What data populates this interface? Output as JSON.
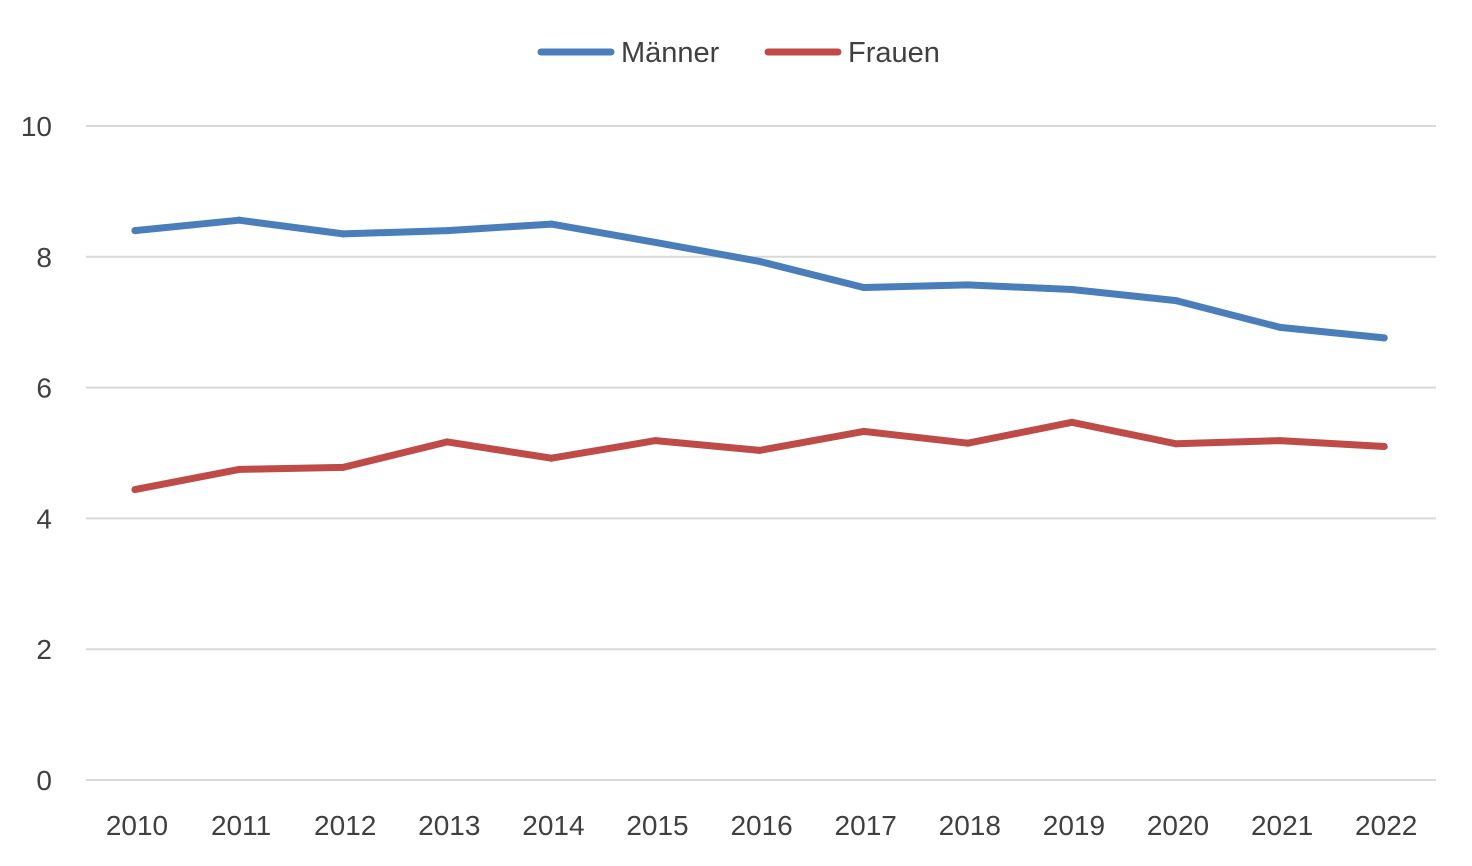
{
  "chart_data": {
    "type": "line",
    "title": "",
    "xlabel": "",
    "ylabel": "",
    "categories": [
      "2010",
      "2011",
      "2012",
      "2013",
      "2014",
      "2015",
      "2016",
      "2017",
      "2018",
      "2019",
      "2020",
      "2021",
      "2022"
    ],
    "series": [
      {
        "name": "Männer",
        "color": "#4a7ebb",
        "values": [
          8.4,
          8.56,
          8.35,
          8.4,
          8.5,
          8.22,
          7.93,
          7.53,
          7.57,
          7.5,
          7.33,
          6.92,
          6.76
        ]
      },
      {
        "name": "Frauen",
        "color": "#be4b48",
        "values": [
          4.44,
          4.75,
          4.78,
          5.17,
          4.92,
          5.19,
          5.04,
          5.33,
          5.15,
          5.47,
          5.14,
          5.19,
          5.1
        ]
      }
    ],
    "ylim": [
      0,
      10
    ],
    "yticks": [
      0,
      2,
      4,
      6,
      8,
      10
    ],
    "grid": true,
    "legend": "top-center"
  }
}
